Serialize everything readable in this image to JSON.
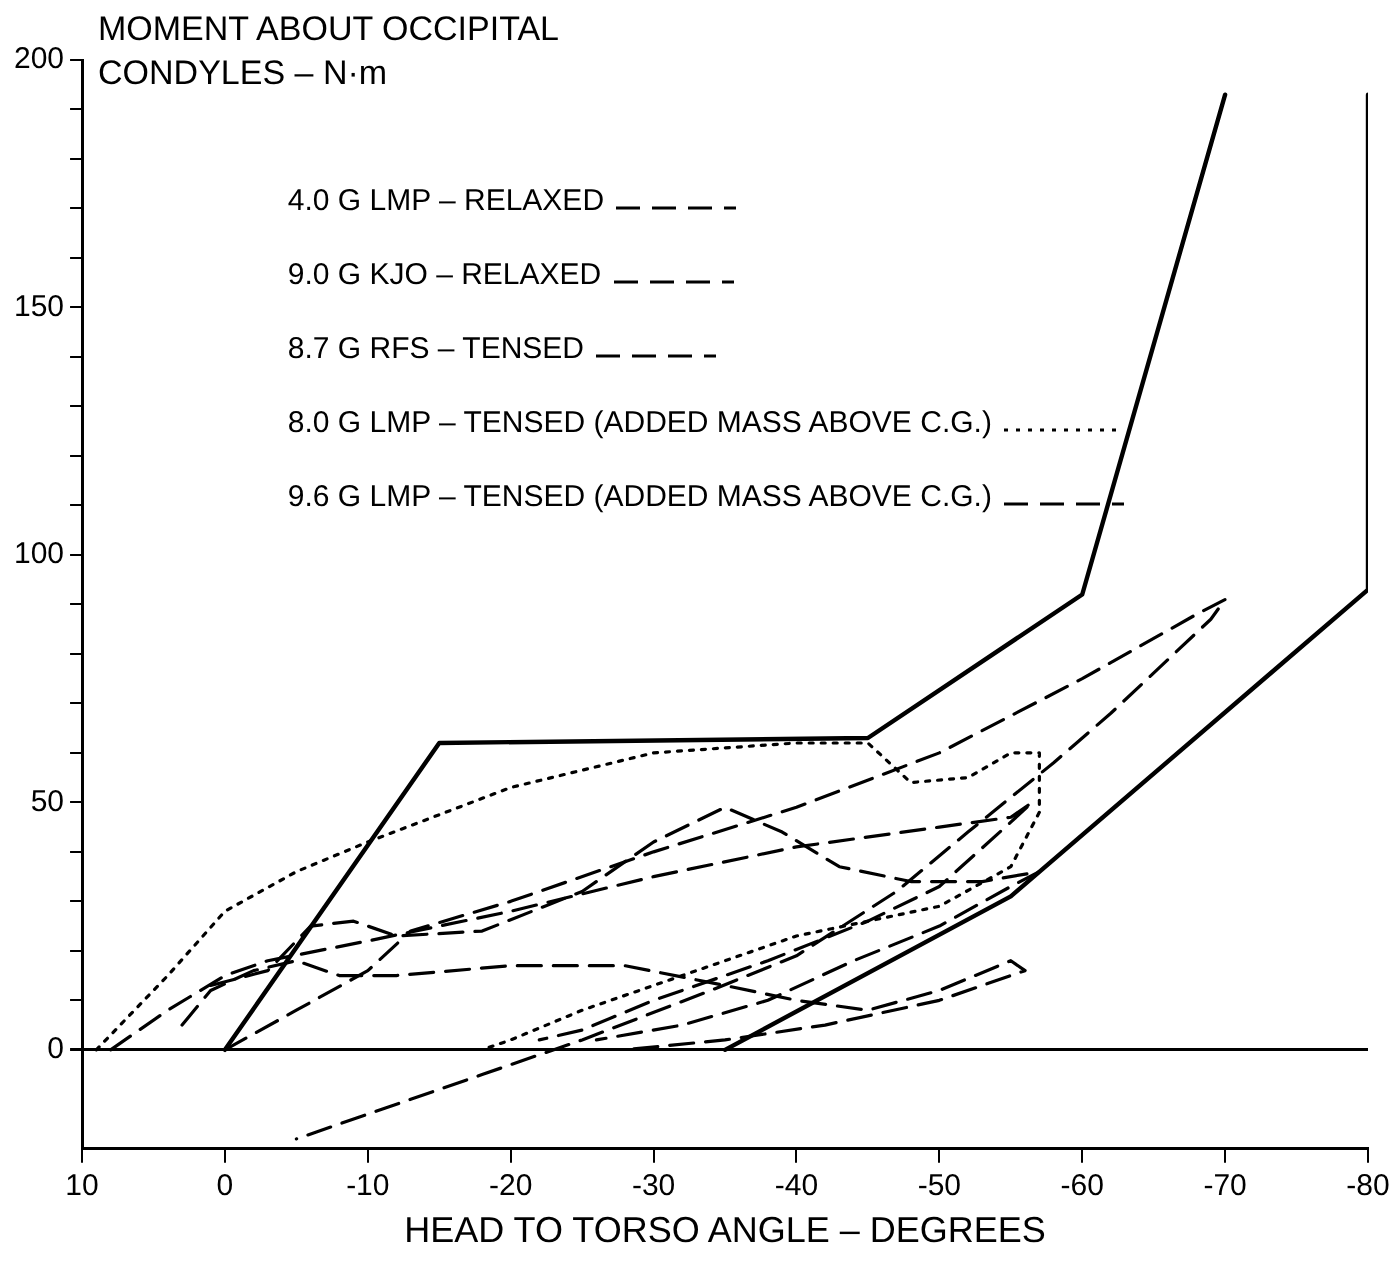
{
  "chart_data": {
    "type": "line",
    "ylabel": "MOMENT ABOUT OCCIPITAL CONDYLES – N·m",
    "xlabel": "HEAD TO TORSO ANGLE – DEGREES",
    "xlim": [
      10,
      -80
    ],
    "xticks": [
      10,
      0,
      -10,
      -20,
      -30,
      -40,
      -50,
      -60,
      -70,
      -80
    ],
    "ylim": [
      -20,
      200
    ],
    "yticks": [
      0,
      {
        "value": 10,
        "label": null
      },
      {
        "value": 20,
        "label": null
      },
      {
        "value": 30,
        "label": null
      },
      {
        "value": 40,
        "label": null
      },
      50,
      {
        "value": 60,
        "label": null
      },
      {
        "value": 70,
        "label": null
      },
      {
        "value": 80,
        "label": null
      },
      {
        "value": 90,
        "label": null
      },
      100,
      {
        "value": 110,
        "label": null
      },
      {
        "value": 120,
        "label": null
      },
      {
        "value": 130,
        "label": null
      },
      {
        "value": 140,
        "label": null
      },
      150,
      {
        "value": 160,
        "label": null
      },
      {
        "value": 170,
        "label": null
      },
      {
        "value": 180,
        "label": null
      },
      {
        "value": 190,
        "label": null
      },
      200
    ],
    "legend": "top left",
    "marker": "none",
    "series": [
      {
        "name": "4.0 G LMP – RELAXED",
        "color": "#000000",
        "line_style": "dashed",
        "x": [
          3,
          1,
          -2,
          -5,
          -8,
          -12,
          -20,
          -28,
          -35,
          -40,
          -45,
          -50,
          -55,
          -56,
          -50,
          -42,
          -35,
          -28
        ],
        "values": [
          5,
          12,
          16,
          18,
          15,
          15,
          17,
          17,
          13,
          10,
          8,
          12,
          18,
          16,
          10,
          5,
          2,
          0
        ]
      },
      {
        "name": "9.0 G KJO – RELAXED",
        "color": "#000000",
        "line_style": "dashed",
        "x": [
          8,
          4,
          0,
          -3,
          -10,
          -20,
          -30,
          -40,
          -50,
          -55,
          -56.5,
          -55,
          -50,
          -45,
          -38,
          -30,
          -25,
          -22
        ],
        "values": [
          0,
          8,
          15,
          18,
          22,
          28,
          35,
          41,
          45,
          47,
          50,
          46,
          33,
          26,
          18,
          10,
          4,
          2
        ]
      },
      {
        "name": "8.7 G RFS – TENSED",
        "color": "#000000",
        "line_style": "dashed",
        "x": [
          1,
          -3,
          -6,
          -9,
          -12,
          -18,
          -25,
          -30,
          -35,
          -39,
          -43,
          -48,
          -53,
          -57,
          -55,
          -50,
          -44,
          -38,
          -32,
          -26
        ],
        "values": [
          13,
          16,
          25,
          26,
          23,
          24,
          32,
          42,
          49,
          44,
          37,
          34,
          34,
          36,
          33,
          25,
          18,
          10,
          5,
          2
        ]
      },
      {
        "name": "8.0 G LMP – TENSED (ADDED MASS ABOVE C.G.)",
        "color": "#000000",
        "line_style": "dotted",
        "x": [
          9,
          4,
          0,
          -5,
          -10,
          -20,
          -30,
          -40,
          -45,
          -48,
          -52,
          -55,
          -57,
          -57,
          -55,
          -50,
          -40,
          -32,
          -25,
          -20,
          -18
        ],
        "values": [
          0,
          15,
          28,
          36,
          42,
          53,
          60,
          62,
          62,
          54,
          55,
          60,
          60,
          48,
          37,
          29,
          23,
          15,
          8,
          2,
          0
        ]
      },
      {
        "name": "9.6 G LMP – TENSED (ADDED MASS ABOVE C.G.)",
        "color": "#000000",
        "line_style": "dashed",
        "x": [
          0,
          -5,
          -10,
          -13,
          -20,
          -30,
          -40,
          -50,
          -60,
          -68,
          -70,
          -69,
          -62,
          -58,
          -52,
          -47,
          -40,
          -34,
          -25,
          -18,
          -10,
          -5
        ],
        "values": [
          0,
          8,
          16,
          24,
          30,
          40,
          49,
          60,
          75,
          88,
          91,
          87,
          68,
          58,
          44,
          32,
          19,
          12,
          2,
          -5,
          -13,
          -18
        ]
      },
      {
        "color": "#000000",
        "line_style": "solid",
        "x": [
          0,
          -15,
          -45,
          -60,
          -70
        ],
        "values": [
          0,
          62,
          63,
          92,
          193
        ]
      },
      {
        "color": "#000000",
        "line_style": "solid",
        "x": [
          -35,
          -55,
          -80,
          -80
        ],
        "values": [
          0,
          31,
          93,
          193
        ]
      }
    ]
  }
}
